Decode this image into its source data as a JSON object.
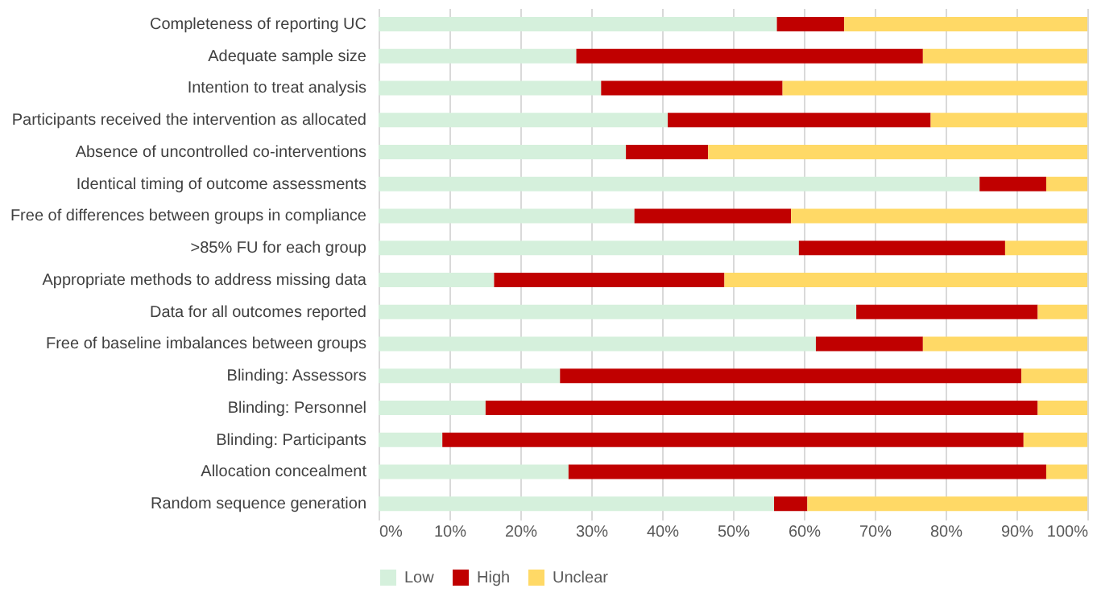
{
  "chart_data": {
    "type": "bar",
    "orientation": "horizontal",
    "stacked": true,
    "categories": [
      "Completeness of reporting UC",
      "Adequate sample size",
      "Intention to treat analysis",
      "Participants received the intervention as allocated",
      "Absence of uncontrolled co-interventions",
      "Identical timing of outcome assessments",
      "Free of differences between groups in compliance",
      ">85% FU for each group",
      "Appropriate methods to address missing data",
      "Data for all outcomes reported",
      "Free of baseline imbalances between groups",
      "Blinding: Assessors",
      "Blinding: Personnel",
      "Blinding: Participants",
      "Allocation concealment",
      "Random sequence generation"
    ],
    "series": [
      {
        "name": "Low",
        "color": "#d5f0dc",
        "values": [
          56.2,
          27.9,
          31.4,
          40.8,
          34.9,
          84.8,
          36.1,
          59.3,
          16.3,
          67.4,
          61.7,
          25.6,
          15.1,
          9.0,
          26.8,
          55.8
        ]
      },
      {
        "name": "High",
        "color": "#c00000",
        "values": [
          9.5,
          48.9,
          25.6,
          37.1,
          11.6,
          9.4,
          22.1,
          29.1,
          32.5,
          25.6,
          15.1,
          65.1,
          77.9,
          82.0,
          67.4,
          4.7
        ]
      },
      {
        "name": "Unclear",
        "color": "#ffd966",
        "values": [
          34.3,
          23.2,
          43.0,
          22.1,
          53.5,
          5.8,
          41.8,
          11.6,
          51.2,
          7.0,
          23.2,
          9.3,
          7.0,
          9.0,
          5.8,
          39.5
        ]
      }
    ],
    "xlim": [
      0,
      100
    ],
    "xticks": [
      {
        "value": 0,
        "label": "0%"
      },
      {
        "value": 10,
        "label": "10%"
      },
      {
        "value": 20,
        "label": "20%"
      },
      {
        "value": 30,
        "label": "30%"
      },
      {
        "value": 40,
        "label": "40%"
      },
      {
        "value": 50,
        "label": "50%"
      },
      {
        "value": 60,
        "label": "60%"
      },
      {
        "value": 70,
        "label": "70%"
      },
      {
        "value": 80,
        "label": "80%"
      },
      {
        "value": 90,
        "label": "90%"
      },
      {
        "value": 100,
        "label": "100%"
      }
    ],
    "grid": "x",
    "legend": "bottom"
  }
}
